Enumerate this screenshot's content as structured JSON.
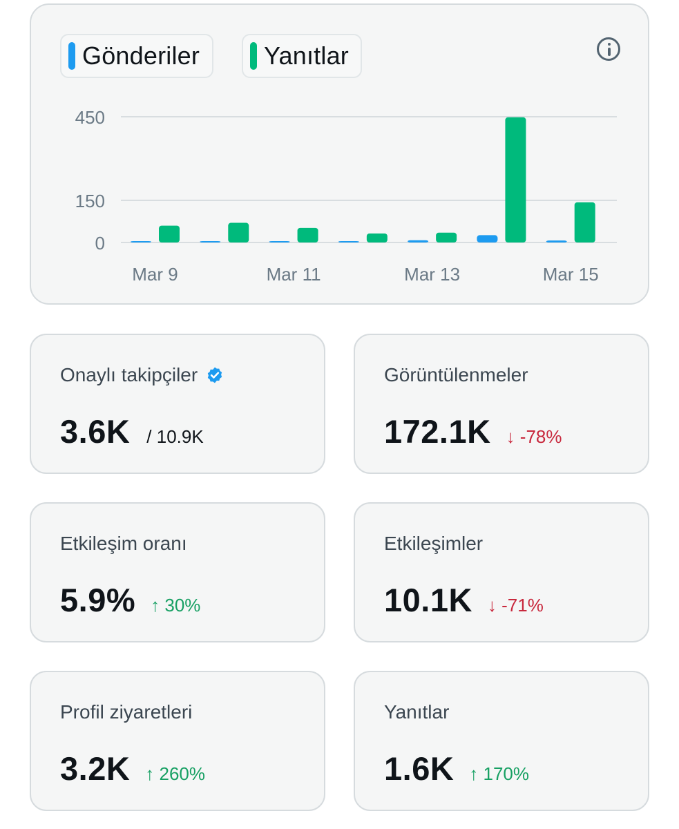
{
  "legend": [
    {
      "label": "Gönderiler",
      "color": "#1d9bf0"
    },
    {
      "label": "Yanıtlar",
      "color": "#00ba7c"
    }
  ],
  "info_icon": "info-icon",
  "chart_data": {
    "type": "bar",
    "categories": [
      "Mar 9",
      "Mar 10",
      "Mar 11",
      "Mar 12",
      "Mar 13",
      "Mar 14",
      "Mar 15"
    ],
    "x_tick_labels": [
      "Mar 9",
      "Mar 11",
      "Mar 13",
      "Mar 15"
    ],
    "y_ticks": [
      0,
      150,
      450
    ],
    "ylim": [
      0,
      450
    ],
    "series": [
      {
        "name": "Gönderiler",
        "color": "#1d9bf0",
        "values": [
          3,
          2,
          2,
          2,
          8,
          26,
          7
        ]
      },
      {
        "name": "Yanıtlar",
        "color": "#00ba7c",
        "values": [
          60,
          70,
          52,
          32,
          35,
          448,
          143
        ]
      }
    ],
    "grid": true
  },
  "stats": {
    "verified_followers": {
      "label": "Onaylı takipçiler",
      "value": "3.6K",
      "total": "/ 10.9K"
    },
    "impressions": {
      "label": "Görüntülenmeler",
      "value": "172.1K",
      "change": "↓ -78%",
      "direction": "down"
    },
    "engagement_rate": {
      "label": "Etkileşim oranı",
      "value": "5.9%",
      "change": "↑ 30%",
      "direction": "up"
    },
    "engagements": {
      "label": "Etkileşimler",
      "value": "10.1K",
      "change": "↓ -71%",
      "direction": "down"
    },
    "profile_visits": {
      "label": "Profil ziyaretleri",
      "value": "3.2K",
      "change": "↑ 260%",
      "direction": "up"
    },
    "replies": {
      "label": "Yanıtlar",
      "value": "1.6K",
      "change": "↑ 170%",
      "direction": "up"
    }
  }
}
